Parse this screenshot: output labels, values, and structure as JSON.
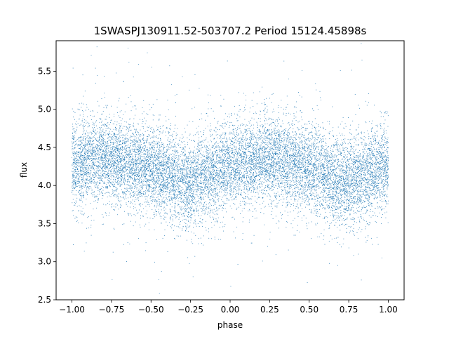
{
  "chart_data": {
    "type": "scatter",
    "title": "1SWASPJ130911.52-503707.2 Period 15124.45898s",
    "xlabel": "phase",
    "ylabel": "flux",
    "xlim": [
      -1.1,
      1.1
    ],
    "ylim": [
      2.5,
      5.9
    ],
    "xticks": [
      -1.0,
      -0.75,
      -0.5,
      -0.25,
      0.0,
      0.25,
      0.5,
      0.75,
      1.0
    ],
    "xtick_labels": [
      "−1.00",
      "−0.75",
      "−0.50",
      "−0.25",
      "0.00",
      "0.25",
      "0.50",
      "0.75",
      "1.00"
    ],
    "yticks": [
      2.5,
      3.0,
      3.5,
      4.0,
      4.5,
      5.0,
      5.5
    ],
    "ytick_labels": [
      "2.5",
      "3.0",
      "3.5",
      "4.0",
      "4.5",
      "5.0",
      "5.5"
    ],
    "grid": false,
    "legend": "none",
    "color": "#1f77b4",
    "phase_range": [
      -1.0,
      1.0
    ],
    "phase_profile": [
      {
        "x": -1.0,
        "y": 4.25
      },
      {
        "x": -0.875,
        "y": 4.35
      },
      {
        "x": -0.75,
        "y": 4.33
      },
      {
        "x": -0.625,
        "y": 4.3
      },
      {
        "x": -0.5,
        "y": 4.22
      },
      {
        "x": -0.375,
        "y": 4.12
      },
      {
        "x": -0.3,
        "y": 4.05
      },
      {
        "x": -0.25,
        "y": 4.05
      },
      {
        "x": -0.125,
        "y": 4.15
      },
      {
        "x": 0.0,
        "y": 4.25
      },
      {
        "x": 0.125,
        "y": 4.33
      },
      {
        "x": 0.25,
        "y": 4.35
      },
      {
        "x": 0.375,
        "y": 4.3
      },
      {
        "x": 0.5,
        "y": 4.22
      },
      {
        "x": 0.625,
        "y": 4.12
      },
      {
        "x": 0.7,
        "y": 4.05
      },
      {
        "x": 0.75,
        "y": 4.05
      },
      {
        "x": 0.875,
        "y": 4.15
      },
      {
        "x": 1.0,
        "y": 4.25
      }
    ],
    "scatter_std": 0.28
  }
}
